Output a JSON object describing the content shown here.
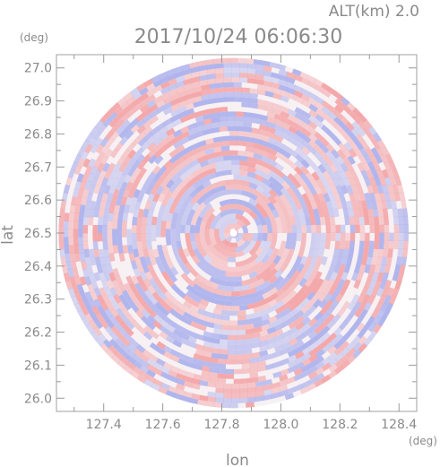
{
  "chart_data": {
    "type": "heatmap",
    "title": "2017/10/24 06:06:30",
    "subtitle": "ALT(km) 2.0",
    "xlabel": "lon",
    "ylabel": "lat",
    "x_unit": "(deg)",
    "y_unit": "(deg)",
    "xlim": [
      127.24,
      128.46
    ],
    "ylim": [
      25.96,
      27.04
    ],
    "x_ticks": [
      "127.4",
      "127.6",
      "127.8",
      "128.0",
      "128.2",
      "128.4"
    ],
    "y_ticks": [
      "26.0",
      "26.1",
      "26.2",
      "26.3",
      "26.4",
      "26.5",
      "26.6",
      "26.7",
      "26.8",
      "26.9",
      "27.0"
    ],
    "center": [
      127.84,
      26.5
    ],
    "radius_lat": 0.53,
    "colors": {
      "positive": "#f4a8a8",
      "negative": "#b0b4ee",
      "frame": "#a0a0a0",
      "text": "#8a8a8a"
    }
  }
}
